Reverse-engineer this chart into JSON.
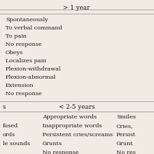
{
  "title_col2": "> 1 year",
  "section1_rows": [
    "Spontaneously",
    "To verbal command",
    "To pain",
    "No response",
    "Obeys",
    "Localizes pain",
    "Flexion-withdrawal",
    "Flexion-abnormal",
    "Extension",
    "No response"
  ],
  "header2_col1": "s",
  "header2_col2": "< 2-5 years",
  "section2_rows": [
    [
      "",
      "Appropriate words",
      "Smiles"
    ],
    [
      "fused",
      "Inappropriate words",
      "Cries,"
    ],
    [
      "ords",
      "Persistent cries/screams",
      "Persist"
    ],
    [
      "le sounds",
      "Grunts",
      "Grunt"
    ],
    [
      "",
      "No response",
      "No res"
    ]
  ],
  "bg_color": "#f0ece3",
  "line_color": "#999999",
  "text_color": "#1a1a1a",
  "header_fontsize": 6.5,
  "row_fontsize": 6.0
}
